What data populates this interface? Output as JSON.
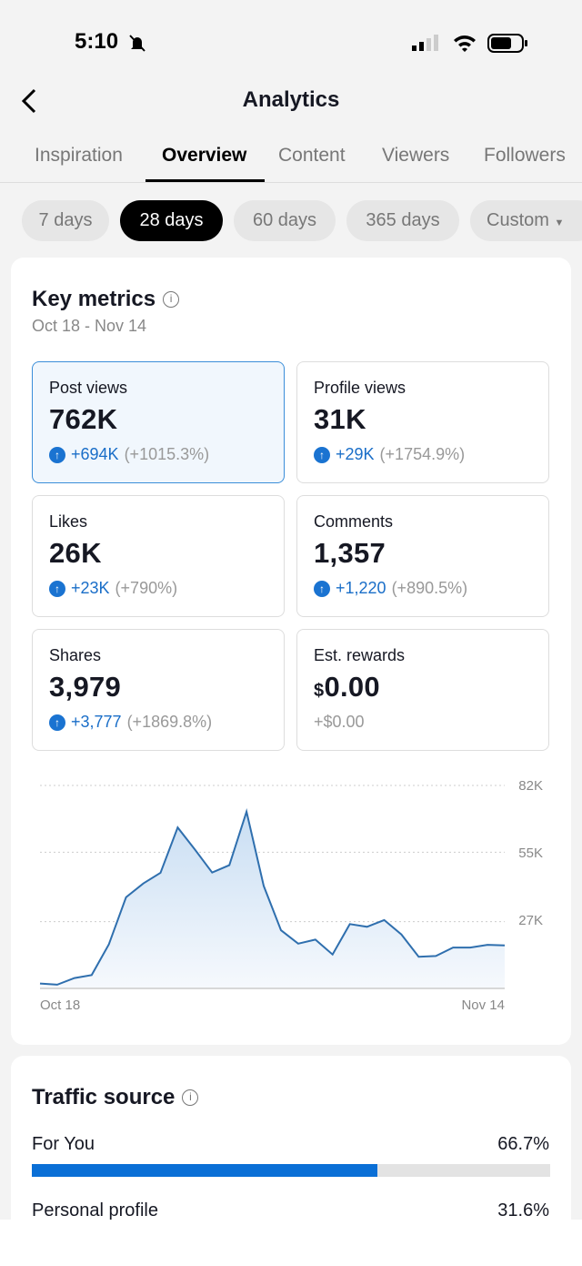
{
  "status_bar": {
    "time": "5:10",
    "icons": [
      "bell-slash-icon",
      "signal-icon",
      "wifi-icon",
      "battery-icon"
    ]
  },
  "header": {
    "title": "Analytics",
    "back_icon": "chevron-left-icon"
  },
  "tabs": [
    {
      "label": "Inspiration"
    },
    {
      "label": "Overview",
      "active": true
    },
    {
      "label": "Content"
    },
    {
      "label": "Viewers"
    },
    {
      "label": "Followers"
    }
  ],
  "ranges": [
    {
      "label": "7 days"
    },
    {
      "label": "28 days",
      "active": true
    },
    {
      "label": "60 days"
    },
    {
      "label": "365 days"
    },
    {
      "label": "Custom"
    }
  ],
  "key_metrics": {
    "title": "Key metrics",
    "date_range": "Oct 18 - Nov 14",
    "metrics": [
      {
        "label": "Post views",
        "value": "762K",
        "delta": "+694K",
        "pct": "(+1015.3%)"
      },
      {
        "label": "Profile views",
        "value": "31K",
        "delta": "+29K",
        "pct": "(+1754.9%)"
      },
      {
        "label": "Likes",
        "value": "26K",
        "delta": "+23K",
        "pct": "(+790%)"
      },
      {
        "label": "Comments",
        "value": "1,357",
        "delta": "+1,220",
        "pct": "(+890.5%)"
      },
      {
        "label": "Shares",
        "value": "3,979",
        "delta": "+3,777",
        "pct": "(+1869.8%)"
      },
      {
        "label": "Est. rewards",
        "currency": "$",
        "value": "0.00",
        "delta": "+$0.00"
      }
    ]
  },
  "chart_data": {
    "type": "area",
    "title": "",
    "xlabel": "",
    "ylabel": "",
    "x_tick_labels": [
      "Oct 18",
      "Nov 14"
    ],
    "y_tick_labels": [
      "82K",
      "55K",
      "27K"
    ],
    "y_ticks": [
      82,
      55,
      27
    ],
    "ylim": [
      0,
      82
    ],
    "grid": true,
    "color": "#2f6fae",
    "values": [
      2.0,
      1.5,
      4.2,
      5.4,
      17.8,
      36.8,
      42.4,
      46.7,
      65.0,
      56.1,
      46.8,
      49.8,
      71.4,
      41.4,
      23.5,
      18.1,
      19.7,
      13.7,
      26.0,
      24.9,
      27.6,
      21.8,
      12.8,
      13.1,
      16.5,
      16.5,
      17.6,
      17.4
    ]
  },
  "traffic": {
    "title": "Traffic source",
    "sources": [
      {
        "label": "For You",
        "value": "66.7%",
        "fraction": 0.667
      },
      {
        "label": "Personal profile",
        "value": "31.6%",
        "fraction": 0.316
      }
    ]
  },
  "colors": {
    "accent": "#1a73d1",
    "bar_track": "#e3e3e3"
  }
}
